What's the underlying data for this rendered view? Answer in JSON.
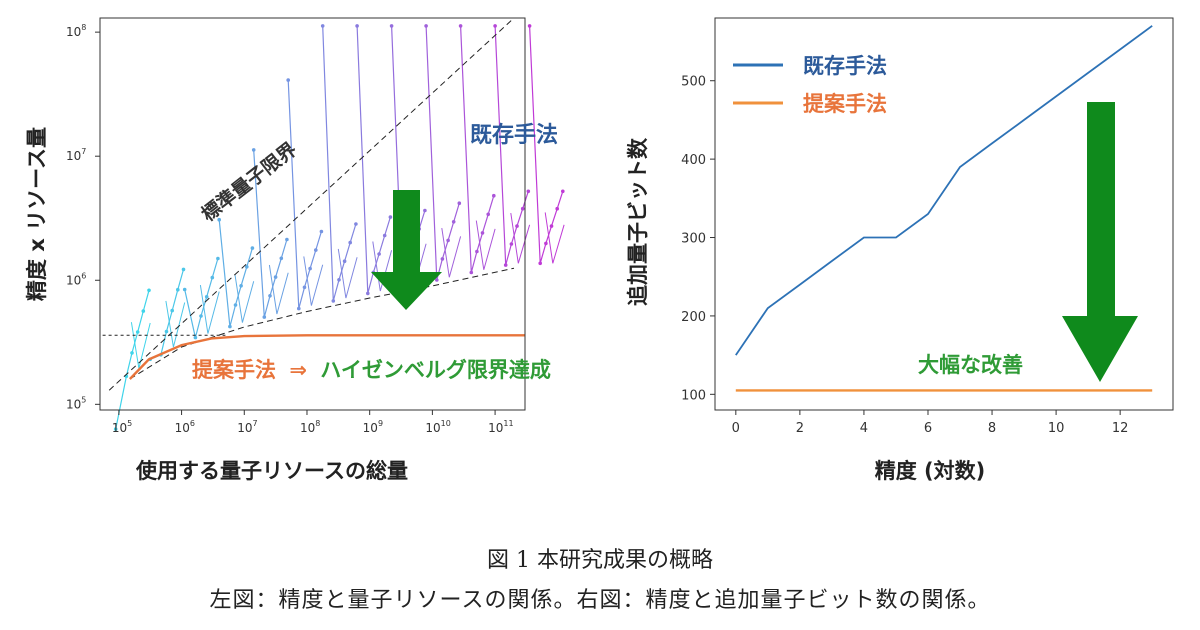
{
  "chart_data": [
    {
      "type": "line",
      "xlabel": "使用する量子リソースの総量",
      "ylabel": "精度 x リソース量",
      "xscale": "log",
      "yscale": "log",
      "xlim": [
        50000,
        300000000000
      ],
      "ylim": [
        90000,
        130000000
      ],
      "xticks": [
        {
          "value": 100000,
          "base": "10",
          "exp": "5"
        },
        {
          "value": 1000000,
          "base": "10",
          "exp": "6"
        },
        {
          "value": 10000000,
          "base": "10",
          "exp": "7"
        },
        {
          "value": 100000000,
          "base": "10",
          "exp": "8"
        },
        {
          "value": 1000000000,
          "base": "10",
          "exp": "9"
        },
        {
          "value": 10000000000,
          "base": "10",
          "exp": "10"
        },
        {
          "value": 100000000000,
          "base": "10",
          "exp": "11"
        }
      ],
      "yticks": [
        {
          "value": 100000,
          "base": "10",
          "exp": "5"
        },
        {
          "value": 1000000,
          "base": "10",
          "exp": "6"
        },
        {
          "value": 10000000,
          "base": "10",
          "exp": "7"
        },
        {
          "value": 100000000,
          "base": "10",
          "exp": "8"
        }
      ],
      "grid": false,
      "annotations": {
        "sql": "標準量子限界",
        "existing": "既存手法",
        "proposed_prefix": "提案手法",
        "arrow": "⇒",
        "proposed_suffix": "ハイゼンベルグ限界達成"
      },
      "reference_lines": [
        {
          "name": "sql",
          "style": "dashed",
          "points": [
            [
              70000,
              130000
            ],
            [
              200000000000,
              130000000
            ]
          ]
        },
        {
          "name": "heisenberg-bound",
          "style": "dashed",
          "points": [
            [
              150000,
              160000
            ],
            [
              1000000,
              290000
            ],
            [
              10000000,
              420000
            ],
            [
              100000000,
              560000
            ],
            [
              1000000000,
              720000
            ],
            [
              10000000000,
              900000
            ],
            [
              200000000000,
              1250000
            ]
          ]
        },
        {
          "name": "baseline",
          "style": "dotted",
          "points": [
            [
              55000,
              360000
            ],
            [
              5000000,
              360000
            ]
          ]
        }
      ],
      "series": [
        {
          "name": "提案手法",
          "color": "#e8743b",
          "points": [
            [
              150000,
              160000
            ],
            [
              300000,
              230000
            ],
            [
              1000000,
              300000
            ],
            [
              3000000,
              340000
            ],
            [
              10000000,
              355000
            ],
            [
              100000000,
              360000
            ],
            [
              1000000000,
              360000
            ],
            [
              300000000000,
              360000
            ]
          ]
        }
      ],
      "existing_color_start": "#3fd4ea",
      "existing_color_end": "#c03ad6",
      "existing_families": 13,
      "heisenberg_label": ""
    },
    {
      "type": "line",
      "xlabel": "精度 (対数)",
      "ylabel": "追加量子ビット数",
      "xlim": [
        -0.65,
        13.65
      ],
      "ylim": [
        80,
        580
      ],
      "xticks": [
        0,
        2,
        4,
        6,
        8,
        10,
        12
      ],
      "yticks": [
        100,
        200,
        300,
        400,
        500
      ],
      "grid": false,
      "legend": "top-left",
      "annotation": "大幅な改善",
      "series": [
        {
          "name": "既存手法",
          "color": "#2d72b6",
          "x": [
            0,
            1,
            2,
            3,
            4,
            5,
            6,
            7,
            8,
            9,
            10,
            11,
            12,
            13
          ],
          "y": [
            150,
            210,
            240,
            270,
            300,
            300,
            330,
            390,
            420,
            450,
            480,
            510,
            540,
            570
          ]
        },
        {
          "name": "提案手法",
          "color": "#f0913c",
          "x": [
            0,
            13
          ],
          "y": [
            105,
            105
          ]
        }
      ]
    }
  ],
  "caption": {
    "line1": "図 1 本研究成果の概略",
    "line2": "左図：精度と量子リソースの関係。右図：精度と追加量子ビット数の関係。"
  },
  "colors": {
    "existing_label": "#2c5a9a",
    "proposed_label": "#e8743b",
    "green_text": "#2f9b36",
    "arrow_fill": "#0f8a1c"
  }
}
